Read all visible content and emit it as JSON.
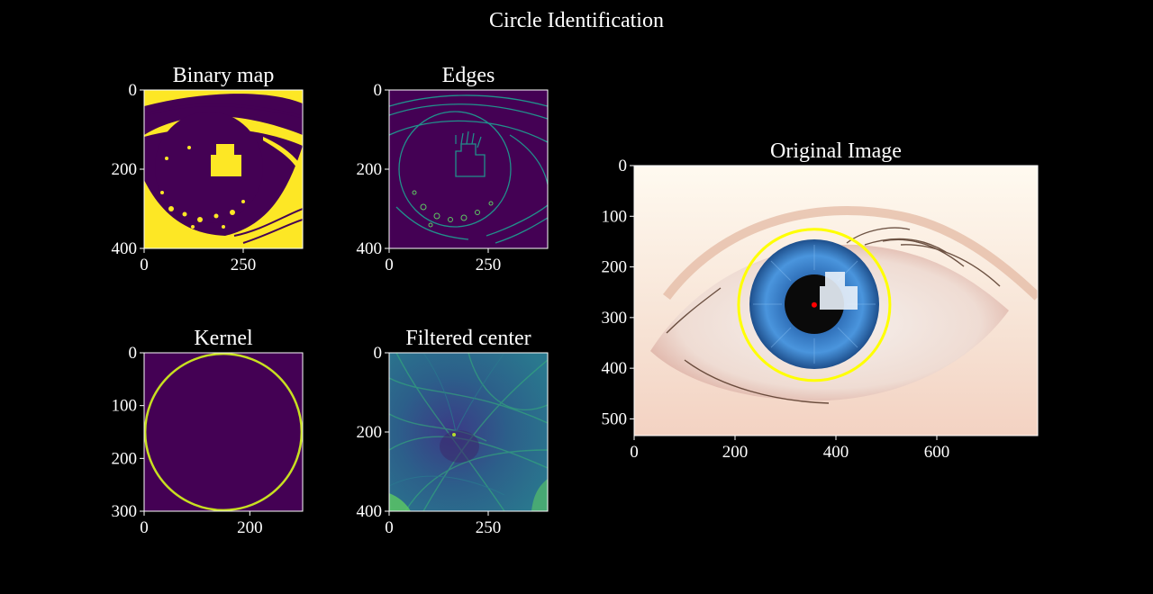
{
  "figure": {
    "title": "Circle Identification",
    "background": "#000000",
    "foreground": "#ffffff"
  },
  "colors": {
    "viridis_dark": "#440154",
    "viridis_yellow": "#fde725",
    "viridis_teal": "#21918c",
    "viridis_green": "#5ec962",
    "detected_circle": "#ffff00",
    "detected_center": "#ff0000",
    "iris_blue": "#3d7fc4",
    "sclera": "#f4ece6"
  },
  "chart_data": [
    {
      "id": "binary",
      "type": "heatmap",
      "title": "Binary map",
      "colormap": "viridis",
      "xlim": [
        0,
        400
      ],
      "ylim": [
        400,
        0
      ],
      "xticks": [
        0,
        250
      ],
      "yticks": [
        0,
        200,
        400
      ],
      "xtick_labels": [
        "0",
        "250"
      ],
      "ytick_labels": [
        "0",
        "200",
        "400"
      ]
    },
    {
      "id": "edges",
      "type": "heatmap",
      "title": "Edges",
      "colormap": "viridis",
      "xlim": [
        0,
        400
      ],
      "ylim": [
        400,
        0
      ],
      "xticks": [
        0,
        250
      ],
      "yticks": [
        0,
        200,
        400
      ],
      "xtick_labels": [
        "0",
        "250"
      ],
      "ytick_labels": [
        "0",
        "200",
        "400"
      ]
    },
    {
      "id": "kernel",
      "type": "heatmap",
      "title": "Kernel",
      "colormap": "viridis",
      "xlim": [
        0,
        300
      ],
      "ylim": [
        300,
        0
      ],
      "xticks": [
        0,
        200
      ],
      "yticks": [
        0,
        100,
        200,
        300
      ],
      "xtick_labels": [
        "0",
        "200"
      ],
      "ytick_labels": [
        "0",
        "100",
        "200",
        "300"
      ],
      "circle": {
        "cx": 150,
        "cy": 150,
        "r": 148
      }
    },
    {
      "id": "filtered",
      "type": "heatmap",
      "title": "Filtered center",
      "colormap": "viridis",
      "xlim": [
        0,
        400
      ],
      "ylim": [
        400,
        0
      ],
      "xticks": [
        0,
        250
      ],
      "yticks": [
        0,
        200,
        400
      ],
      "xtick_labels": [
        "0",
        "250"
      ],
      "ytick_labels": [
        "0",
        "200",
        "400"
      ]
    },
    {
      "id": "original",
      "type": "image",
      "title": "Original Image",
      "xlim": [
        0,
        800
      ],
      "ylim": [
        533,
        0
      ],
      "xticks": [
        0,
        200,
        400,
        600
      ],
      "yticks": [
        0,
        100,
        200,
        300,
        400,
        500
      ],
      "xtick_labels": [
        "0",
        "200",
        "400",
        "600"
      ],
      "ytick_labels": [
        "0",
        "100",
        "200",
        "300",
        "400",
        "500"
      ],
      "detected_circle": {
        "cx": 357,
        "cy": 275,
        "r": 150
      },
      "detected_center": {
        "cx": 357,
        "cy": 275
      }
    }
  ]
}
